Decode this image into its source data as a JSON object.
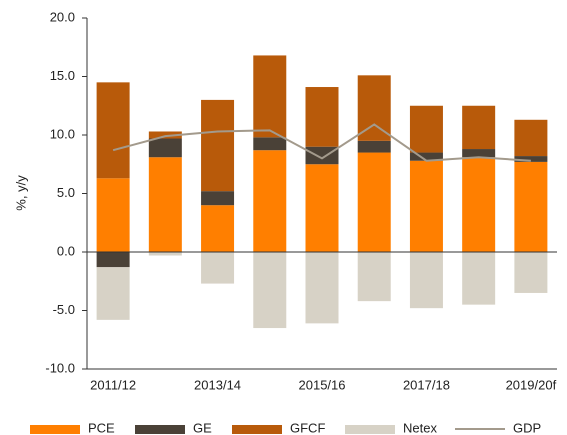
{
  "chart_data": {
    "type": "bar",
    "stacked": true,
    "y_label": "%, y/y",
    "categories": [
      "2011/12",
      null,
      "2013/14",
      null,
      "2015/16",
      null,
      "2017/18",
      null,
      "2019/20f"
    ],
    "series": [
      {
        "name": "PCE",
        "type": "bar",
        "color": "#ff7f00",
        "values": [
          6.3,
          8.1,
          4.0,
          8.7,
          7.5,
          8.5,
          7.8,
          8.1,
          7.7
        ]
      },
      {
        "name": "GE",
        "type": "bar",
        "color": "#4a4137",
        "values": [
          -1.3,
          1.6,
          1.2,
          1.1,
          1.5,
          1.0,
          0.7,
          0.7,
          0.5
        ]
      },
      {
        "name": "GFCF",
        "type": "bar",
        "color": "#b85a0a",
        "values": [
          8.2,
          0.6,
          7.8,
          7.0,
          5.1,
          5.6,
          4.0,
          3.7,
          3.1
        ]
      },
      {
        "name": "Netex",
        "type": "bar",
        "color": "#d7d2c6",
        "values": [
          -4.5,
          -0.3,
          -2.7,
          -6.5,
          -6.1,
          -4.2,
          -4.8,
          -4.5,
          -3.5
        ]
      },
      {
        "name": "GDP",
        "type": "line",
        "color": "#a39a8c",
        "values": [
          8.7,
          9.9,
          10.3,
          10.4,
          8.0,
          10.9,
          7.8,
          8.1,
          7.8
        ]
      }
    ],
    "ylim": [
      -10,
      20
    ],
    "yticks": [
      {
        "value": -10,
        "label": "-10.0"
      },
      {
        "value": -5,
        "label": "-5.0"
      },
      {
        "value": 0,
        "label": "0.0"
      },
      {
        "value": 5,
        "label": "5.0"
      },
      {
        "value": 10,
        "label": "10.0"
      },
      {
        "value": 15,
        "label": "15.0"
      },
      {
        "value": 20,
        "label": "20.0"
      }
    ],
    "grid": false
  }
}
